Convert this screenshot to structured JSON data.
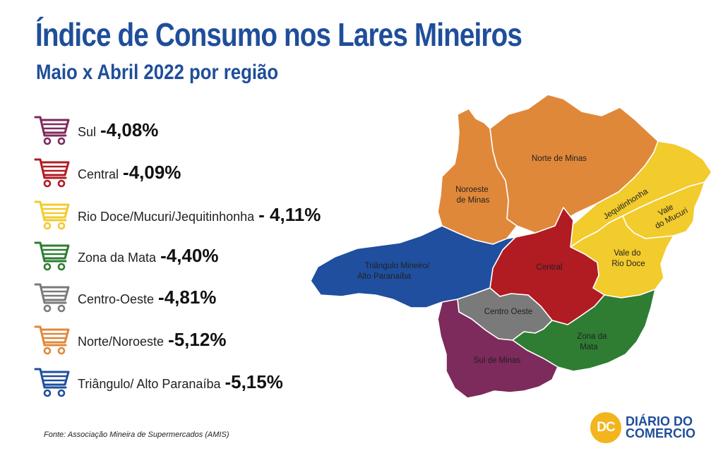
{
  "header": {
    "title": "Índice de Consumo nos Lares Mineiros",
    "subtitle": "Maio x Abril 2022 por região"
  },
  "legend": [
    {
      "name": "Sul",
      "value": "-4,08%",
      "color": "#7d2a5c",
      "icon": "shopping-cart-icon"
    },
    {
      "name": "Central",
      "value": "-4,09%",
      "color": "#b11b22",
      "icon": "shopping-cart-icon"
    },
    {
      "name": "Rio Doce/Mucuri/Jequitinhonha",
      "value": "- 4,11%",
      "color": "#f2cb2c",
      "icon": "shopping-cart-icon"
    },
    {
      "name": "Zona da Mata",
      "value": "-4,40%",
      "color": "#2e7d32",
      "icon": "shopping-cart-icon"
    },
    {
      "name": "Centro-Oeste",
      "value": "-4,81%",
      "color": "#7a7a7a",
      "icon": "shopping-cart-icon"
    },
    {
      "name": "Norte/Noroeste",
      "value": "-5,12%",
      "color": "#e0883a",
      "icon": "shopping-cart-icon"
    },
    {
      "name": "Triângulo/ Alto Paranaíba",
      "value": "-5,15%",
      "color": "#1f4f9e",
      "icon": "shopping-cart-icon"
    }
  ],
  "map": {
    "regions": [
      {
        "id": "norte-de-minas",
        "label_lines": [
          "Norte de Minas"
        ],
        "color": "#e0883a"
      },
      {
        "id": "noroeste-de-minas",
        "label_lines": [
          "Noroeste",
          "de Minas"
        ],
        "color": "#e0883a"
      },
      {
        "id": "jequitinhonha",
        "label_lines": [
          "Jequitinhonha"
        ],
        "color": "#f2cb2c"
      },
      {
        "id": "vale-do-mucuri",
        "label_lines": [
          "Vale",
          "do Mucuri"
        ],
        "color": "#f2cb2c"
      },
      {
        "id": "vale-do-rio-doce",
        "label_lines": [
          "Vale do",
          "Rio Doce"
        ],
        "color": "#f2cb2c"
      },
      {
        "id": "central",
        "label_lines": [
          "Central"
        ],
        "color": "#b11b22"
      },
      {
        "id": "triangulo-mineiro",
        "label_lines": [
          "Triângulo Mineiro/",
          "Alto Paranaíba"
        ],
        "color": "#1f4f9e"
      },
      {
        "id": "centro-oeste",
        "label_lines": [
          "Centro Oeste"
        ],
        "color": "#7a7a7a"
      },
      {
        "id": "zona-da-mata",
        "label_lines": [
          "Zona da",
          "Mata"
        ],
        "color": "#2e7d32"
      },
      {
        "id": "sul-de-minas",
        "label_lines": [
          "Sul de Minas"
        ],
        "color": "#7d2a5c"
      }
    ]
  },
  "source": "Fonte: Associação Mineira de Supermercados (AMIS)",
  "logo": {
    "badge": "DC",
    "line1": "DIÁRIO DO",
    "line2": "COMERCIO",
    "badge_color": "#f2b51d",
    "text_color": "#1f4e9a"
  }
}
